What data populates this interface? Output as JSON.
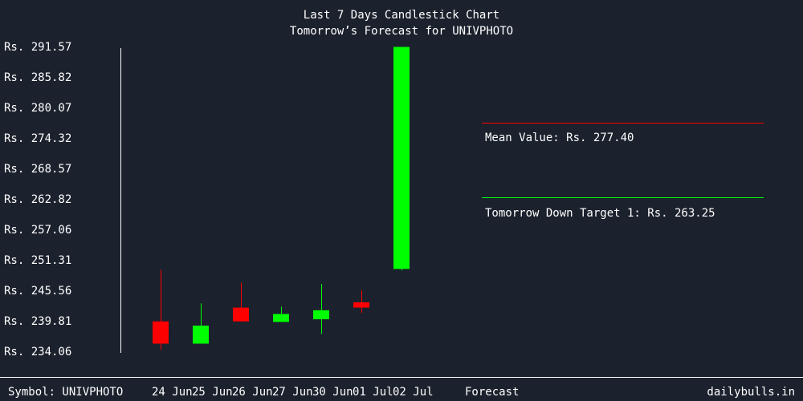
{
  "colors": {
    "background": "#1b212d",
    "text": "#ffffff",
    "up": "#00ff00",
    "down": "#ff0000",
    "axis": "#ffffff",
    "mean_line": "#ff0000",
    "target_line": "#00ff00"
  },
  "footer": {
    "symbol_label": "Symbol: UNIVPHOTO",
    "forecast_label": "Forecast",
    "site": "dailybulls.in"
  },
  "annotations": {
    "mean_label": "Mean Value: Rs. 277.40",
    "target_label": "Tomorrow Down Target 1: Rs. 263.25"
  },
  "chart_data": {
    "type": "candlestick",
    "title": "Last 7 Days Candlestick Chart",
    "subtitle": "Tomorrow’s Forecast for UNIVPHOTO",
    "ylim": [
      234.06,
      291.57
    ],
    "yticks": [
      291.57,
      285.82,
      280.07,
      274.32,
      268.57,
      262.82,
      257.06,
      251.31,
      245.56,
      239.81,
      234.06
    ],
    "ytick_labels": [
      "Rs. 291.57",
      "Rs. 285.82",
      "Rs. 280.07",
      "Rs. 274.32",
      "Rs. 268.57",
      "Rs. 262.82",
      "Rs. 257.06",
      "Rs. 251.31",
      "Rs. 245.56",
      "Rs. 239.81",
      "Rs. 234.06"
    ],
    "categories": [
      "24 Jun",
      "25 Jun",
      "26 Jun",
      "27 Jun",
      "30 Jun",
      "01 Jul",
      "02 Jul"
    ],
    "candles": [
      {
        "date": "24 Jun",
        "open": 239.7,
        "high": 249.4,
        "low": 234.3,
        "close": 235.5
      },
      {
        "date": "25 Jun",
        "open": 235.5,
        "high": 243.1,
        "low": 235.5,
        "close": 238.9
      },
      {
        "date": "26 Jun",
        "open": 242.3,
        "high": 247.0,
        "low": 239.7,
        "close": 239.7
      },
      {
        "date": "27 Jun",
        "open": 239.6,
        "high": 242.5,
        "low": 239.6,
        "close": 241.1
      },
      {
        "date": "30 Jun",
        "open": 240.1,
        "high": 246.8,
        "low": 237.3,
        "close": 241.8
      },
      {
        "date": "01 Jul",
        "open": 243.3,
        "high": 245.6,
        "low": 241.3,
        "close": 242.3
      },
      {
        "date": "02 Jul",
        "open": 249.6,
        "high": 291.5,
        "low": 249.3,
        "close": 291.5
      }
    ],
    "mean_value": 277.4,
    "down_target_1": 263.25,
    "grid": false,
    "legend": "none"
  }
}
